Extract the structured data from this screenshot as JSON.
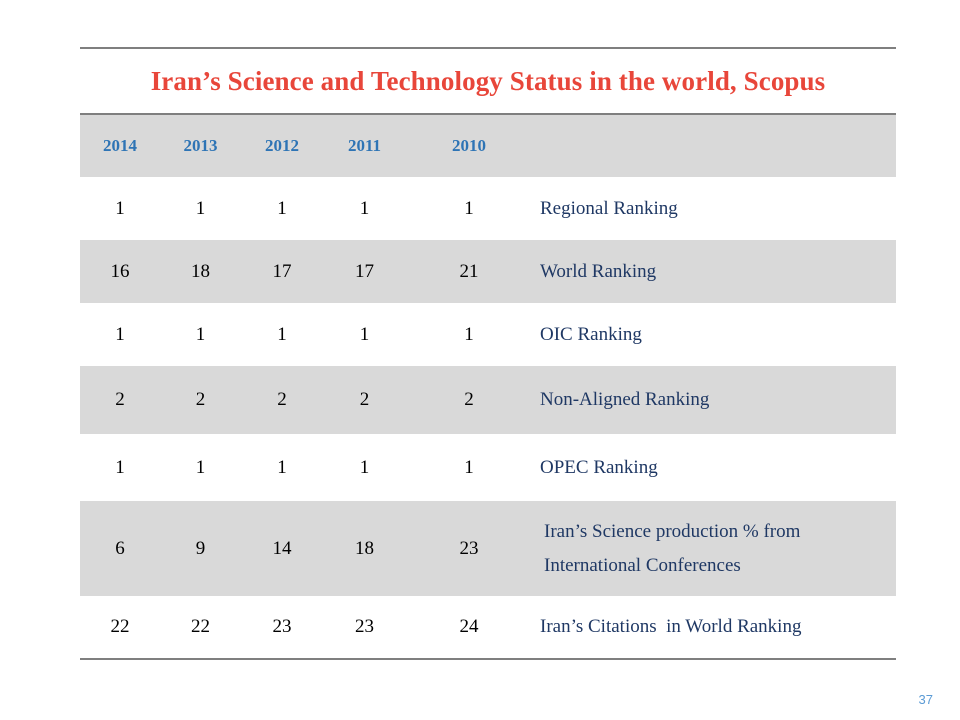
{
  "title": "Iran’s Science and Technology Status in the world, Scopus",
  "years": [
    "2014",
    "2013",
    "2012",
    "2011",
    "2010"
  ],
  "rows": [
    {
      "values": [
        "1",
        "1",
        "1",
        "1",
        "1"
      ],
      "label": "Regional Ranking"
    },
    {
      "values": [
        "16",
        "18",
        "17",
        "17",
        "21"
      ],
      "label": "World Ranking"
    },
    {
      "values": [
        "1",
        "1",
        "1",
        "1",
        "1"
      ],
      "label": "OIC Ranking"
    },
    {
      "values": [
        "2",
        "2",
        "2",
        "2",
        "2"
      ],
      "label": "Non-Aligned Ranking"
    },
    {
      "values": [
        "1",
        "1",
        "1",
        "1",
        "1"
      ],
      "label": "OPEC Ranking"
    },
    {
      "values": [
        "6",
        "9",
        "14",
        "18",
        "23"
      ],
      "label": "Iran’s Science production % from International Conferences"
    },
    {
      "values": [
        "22",
        "22",
        "23",
        "23",
        "24"
      ],
      "label": "Iran’s Citations  in World Ranking"
    }
  ],
  "page_number": "37",
  "colors": {
    "title": "#e8463a",
    "header_years": "#2e74b5",
    "label_text": "#1f3864",
    "shade": "#d9d9d9",
    "page_number": "#5b9bd5"
  }
}
